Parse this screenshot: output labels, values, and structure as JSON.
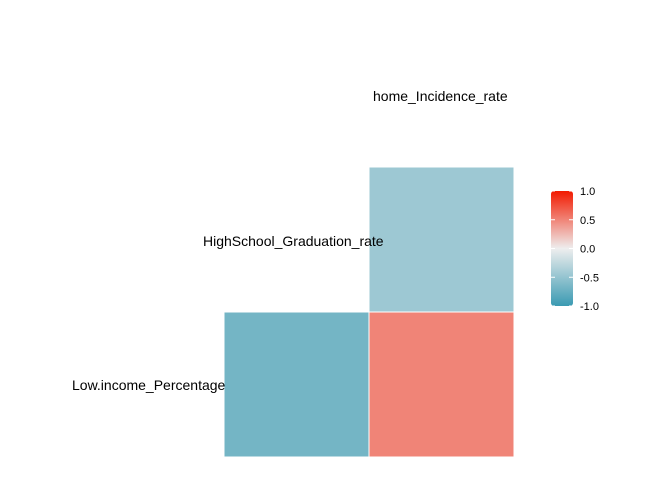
{
  "chart_data": {
    "type": "heatmap",
    "title": "",
    "variables": [
      "Low.income_Percentage",
      "HighSchool_Graduation_rate",
      "home_Incidence_rate"
    ],
    "cells": [
      {
        "row": "HighSchool_Graduation_rate",
        "col": "home_Incidence_rate",
        "value": -0.45
      },
      {
        "row": "Low.income_Percentage",
        "col": "HighSchool_Graduation_rate",
        "value": -0.68
      },
      {
        "row": "Low.income_Percentage",
        "col": "home_Incidence_rate",
        "value": 0.5
      }
    ],
    "legend": {
      "position": "right",
      "range": [
        -1,
        1
      ],
      "ticks": [
        "1.0",
        "0.5",
        "0.0",
        "-0.5",
        "-1.0"
      ],
      "colors": {
        "low": "#3A9AB2",
        "mid": "#EEEEEE",
        "high": "#F21A00"
      }
    }
  }
}
